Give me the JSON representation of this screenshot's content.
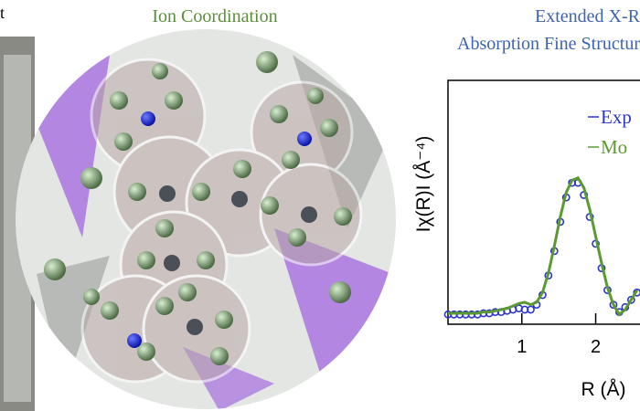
{
  "figure": {
    "left_label": "t",
    "center_title": "Ion Coordination",
    "right_title": [
      "Extended X-R",
      "Absorption Fine Structur"
    ]
  },
  "chart_data": {
    "type": "line",
    "xlabel": "R (Å)",
    "ylabel": "Iχ(R)I  (Å⁻⁴)",
    "x": [
      0,
      0.08,
      0.16,
      0.24,
      0.32,
      0.4,
      0.48,
      0.56,
      0.64,
      0.72,
      0.8,
      0.88,
      0.96,
      1.04,
      1.12,
      1.2,
      1.28,
      1.36,
      1.44,
      1.52,
      1.6,
      1.68,
      1.76,
      1.84,
      1.92,
      2.0,
      2.08,
      2.16,
      2.24,
      2.32,
      2.4,
      2.48,
      2.56
    ],
    "series": [
      {
        "name": "Exp",
        "color": "#2b35c8",
        "marker": "circle",
        "values": [
          0.04,
          0.04,
          0.04,
          0.04,
          0.04,
          0.04,
          0.045,
          0.045,
          0.05,
          0.05,
          0.055,
          0.06,
          0.065,
          0.06,
          0.06,
          0.08,
          0.12,
          0.2,
          0.3,
          0.42,
          0.52,
          0.58,
          0.58,
          0.53,
          0.44,
          0.33,
          0.23,
          0.14,
          0.08,
          0.05,
          0.07,
          0.1,
          0.13
        ]
      },
      {
        "name": "Mo",
        "color": "#5b9a32",
        "marker": "line",
        "values": [
          0.045,
          0.045,
          0.045,
          0.045,
          0.045,
          0.045,
          0.05,
          0.05,
          0.055,
          0.06,
          0.065,
          0.075,
          0.085,
          0.09,
          0.08,
          0.09,
          0.13,
          0.21,
          0.32,
          0.44,
          0.54,
          0.59,
          0.6,
          0.56,
          0.47,
          0.36,
          0.25,
          0.15,
          0.08,
          0.04,
          0.06,
          0.1,
          0.14
        ]
      }
    ],
    "xlim": [
      0,
      2.6
    ],
    "ylim": [
      0,
      1
    ],
    "xticks": [
      1,
      2
    ],
    "legend": "top-right"
  }
}
